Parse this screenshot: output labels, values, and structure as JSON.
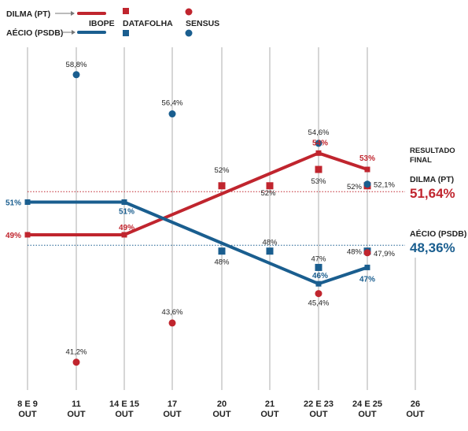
{
  "legend": {
    "dilma_label": "DILMA (PT)",
    "aecio_label": "AÉCIO (PSDB)",
    "ibope_label": "IBOPE",
    "datafolha_label": "DATAFOLHA",
    "sensus_label": "SENSUS"
  },
  "final_result": {
    "heading_line1": "RESULTADO",
    "heading_line2": "FINAL",
    "dilma_name": "DILMA (PT)",
    "dilma_value": "51,64%",
    "aecio_name": "AÉCIO (PSDB)",
    "aecio_value": "48,36%"
  },
  "colors": {
    "dilma": "#c0252e",
    "aecio": "#1a5e8f",
    "grid": "#999999",
    "text": "#222222"
  },
  "chart_data": {
    "type": "line",
    "categories": [
      "8 E 9 OUT",
      "11 OUT",
      "14 E 15 OUT",
      "17 OUT",
      "20 OUT",
      "21 OUT",
      "22 E 23 OUT",
      "24 E 25 OUT",
      "26 OUT"
    ],
    "x_labels": [
      [
        "8 E 9",
        "OUT"
      ],
      [
        "11",
        "OUT"
      ],
      [
        "14 E 15",
        "OUT"
      ],
      [
        "17",
        "OUT"
      ],
      [
        "20",
        "OUT"
      ],
      [
        "21",
        "OUT"
      ],
      [
        "22 E 23",
        "OUT"
      ],
      [
        "24 E 25",
        "OUT"
      ],
      [
        "26",
        "OUT"
      ]
    ],
    "ylim": [
      36,
      62
    ],
    "final_result": {
      "dilma": 51.64,
      "aecio": 48.36
    },
    "series": [
      {
        "name": "IBOPE",
        "candidate": "dilma",
        "kind": "line",
        "label_color": "dilma",
        "points": [
          {
            "i": 0,
            "v": 49,
            "label": "49%"
          },
          {
            "i": 2,
            "v": 49,
            "label": "49%"
          },
          {
            "i": 6,
            "v": 54,
            "label": "54%"
          },
          {
            "i": 7,
            "v": 53,
            "label": "53%"
          }
        ]
      },
      {
        "name": "IBOPE",
        "candidate": "aecio",
        "kind": "line",
        "label_color": "aecio",
        "points": [
          {
            "i": 0,
            "v": 51,
            "label": "51%"
          },
          {
            "i": 2,
            "v": 51,
            "label": "51%"
          },
          {
            "i": 6,
            "v": 46,
            "label": "46%"
          },
          {
            "i": 7,
            "v": 47,
            "label": "47%"
          }
        ]
      },
      {
        "name": "DATAFOLHA",
        "candidate": "dilma",
        "kind": "square",
        "label_color": "text",
        "points": [
          {
            "i": 4,
            "v": 52,
            "label": "52%"
          },
          {
            "i": 5,
            "v": 52,
            "label": "52%"
          },
          {
            "i": 6,
            "v": 53,
            "label": "53%"
          },
          {
            "i": 7,
            "v": 52,
            "label": "52%"
          }
        ]
      },
      {
        "name": "DATAFOLHA",
        "candidate": "aecio",
        "kind": "square",
        "label_color": "text",
        "points": [
          {
            "i": 4,
            "v": 48,
            "label": "48%"
          },
          {
            "i": 5,
            "v": 48,
            "label": "48%"
          },
          {
            "i": 6,
            "v": 47,
            "label": "47%"
          },
          {
            "i": 7,
            "v": 48,
            "label": "48%"
          }
        ]
      },
      {
        "name": "SENSUS",
        "candidate": "dilma",
        "kind": "circle",
        "label_color": "text",
        "points": [
          {
            "i": 1,
            "v": 41.2,
            "label": "41,2%"
          },
          {
            "i": 3,
            "v": 43.6,
            "label": "43,6%"
          },
          {
            "i": 6,
            "v": 45.4,
            "label": "45,4%"
          },
          {
            "i": 7,
            "v": 47.9,
            "label": "47,9%"
          }
        ]
      },
      {
        "name": "SENSUS",
        "candidate": "aecio",
        "kind": "circle",
        "label_color": "text",
        "points": [
          {
            "i": 1,
            "v": 58.8,
            "label": "58,8%"
          },
          {
            "i": 3,
            "v": 56.4,
            "label": "56,4%"
          },
          {
            "i": 6,
            "v": 54.6,
            "label": "54,6%"
          },
          {
            "i": 7,
            "v": 52.1,
            "label": "52,1%"
          }
        ]
      }
    ]
  }
}
